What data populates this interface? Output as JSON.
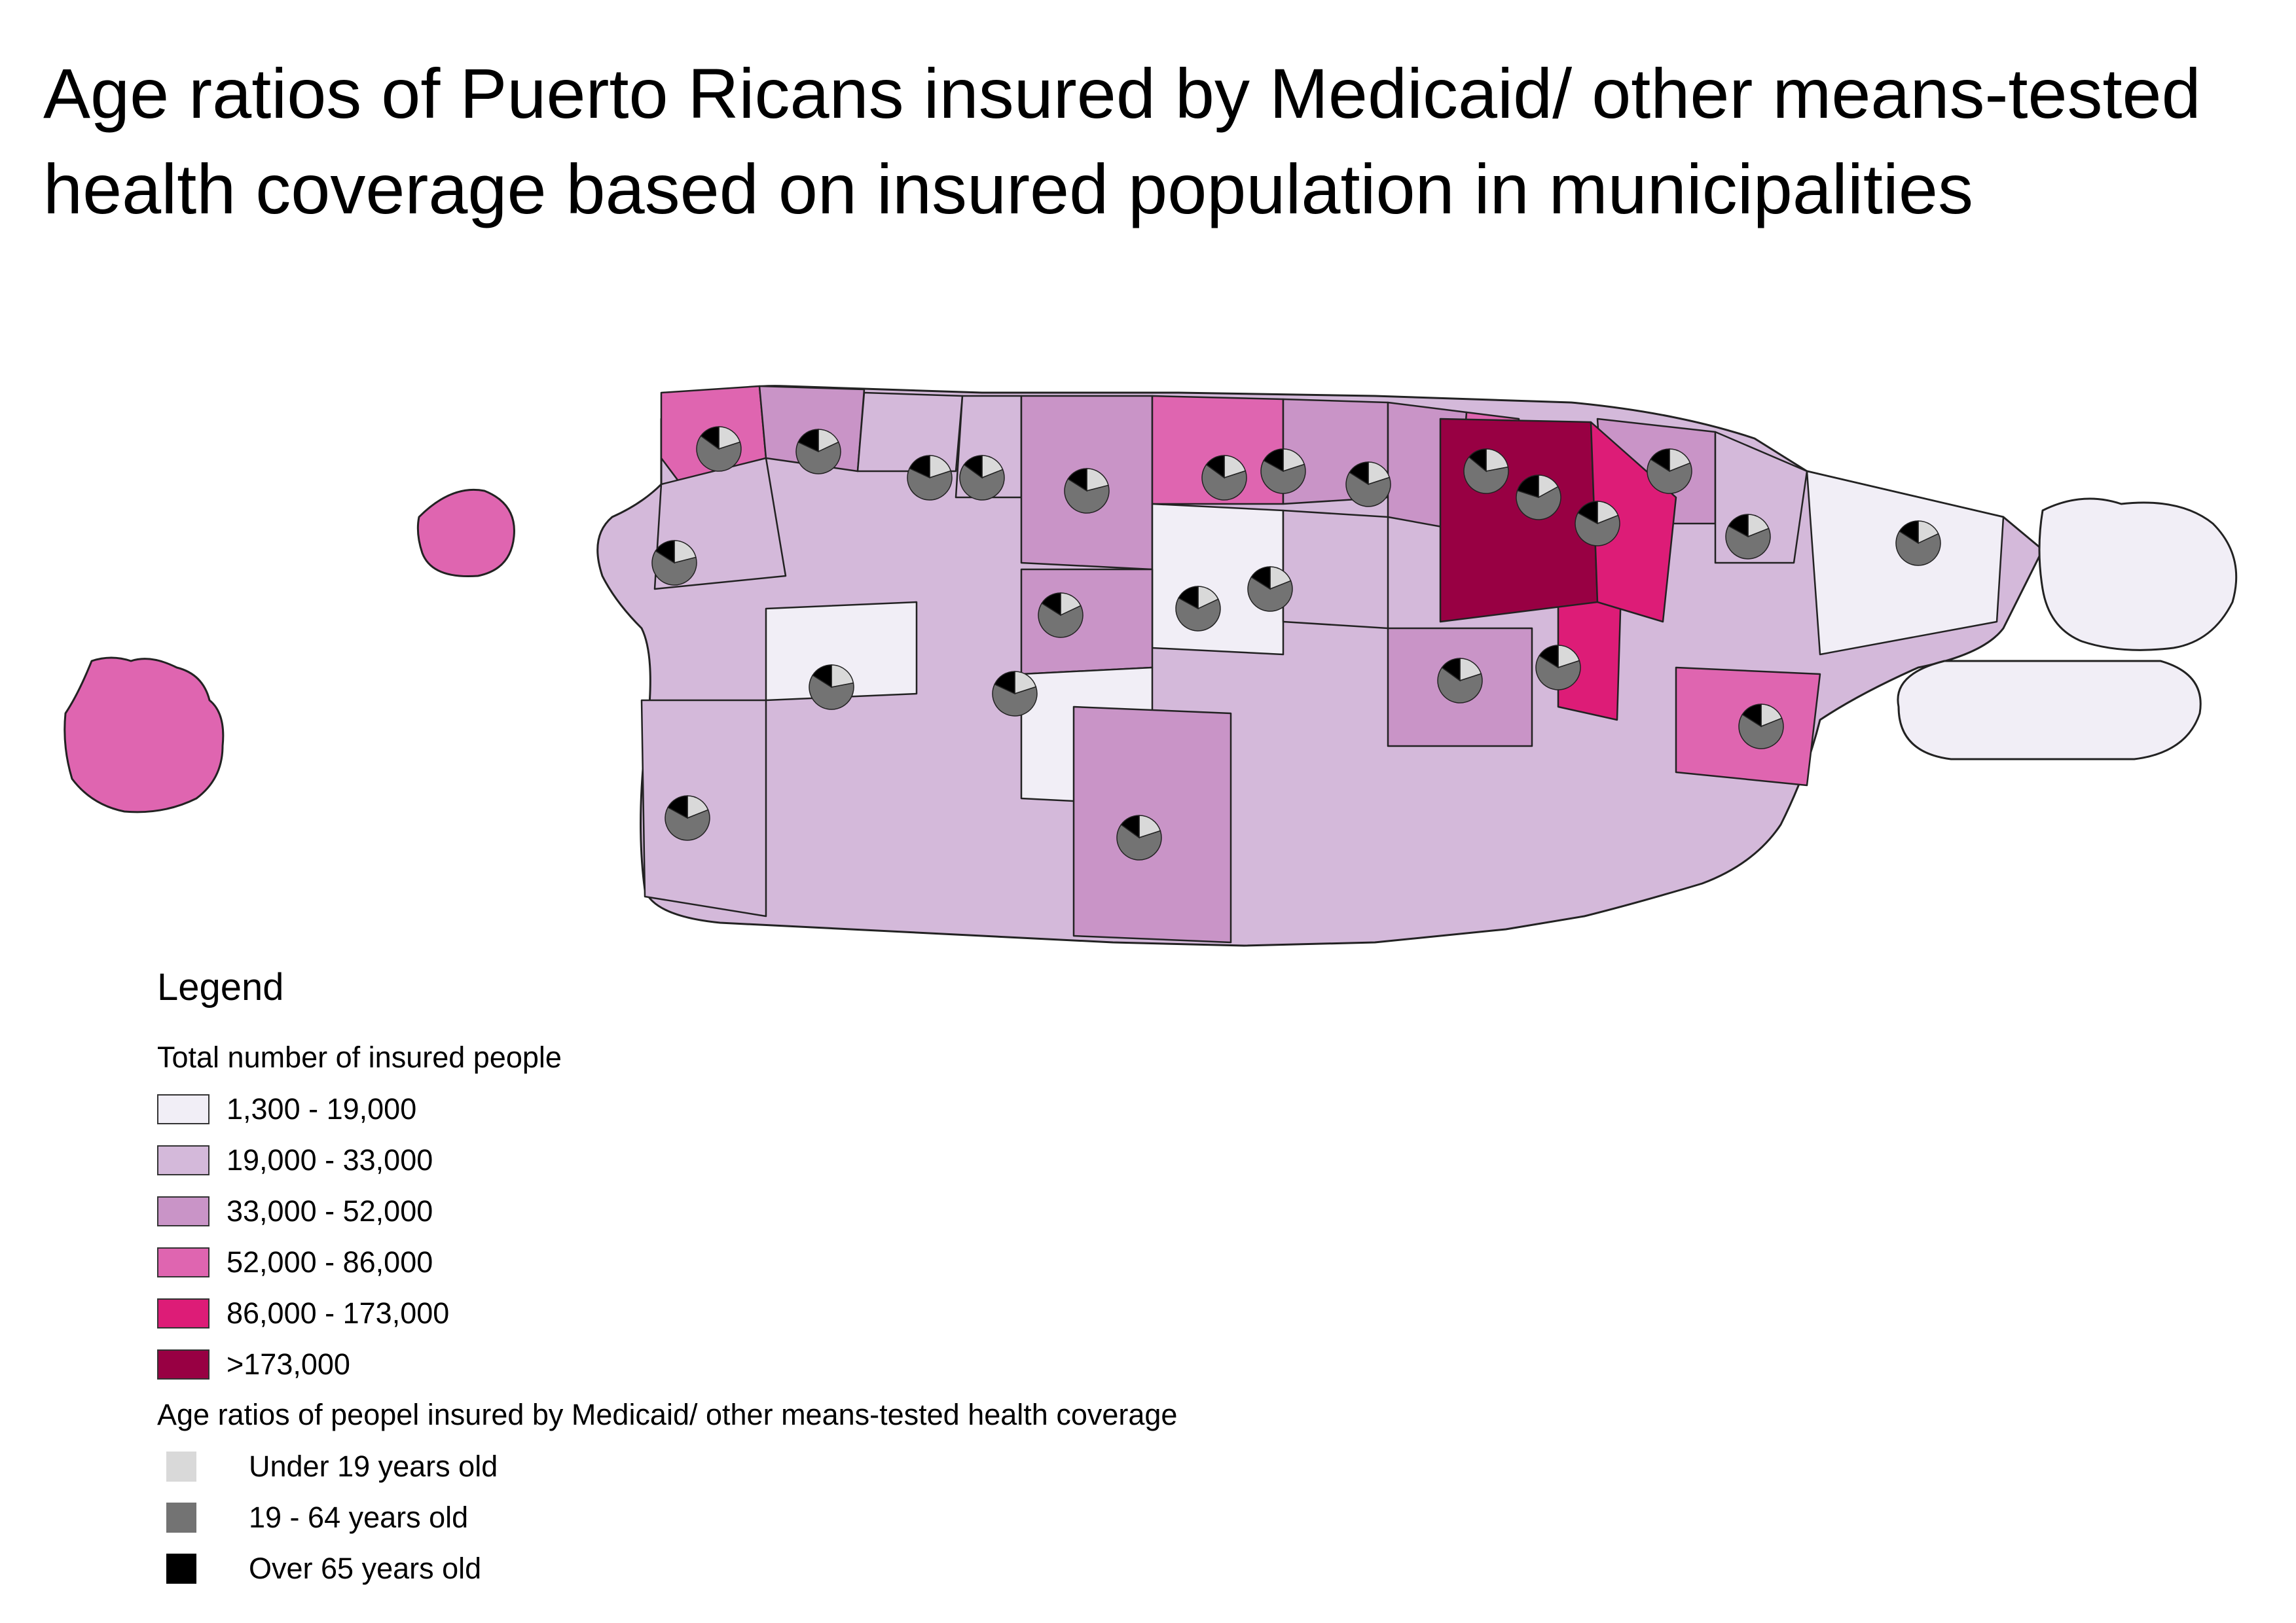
{
  "title": "Age ratios of Puerto Ricans insured by Medicaid/ other means-tested health coverage based on insured population in municipalities",
  "legend": {
    "heading": "Legend",
    "choropleth_title": "Total number of insured people",
    "classes": [
      {
        "label": "1,300 - 19,000",
        "color": "#f1eef6"
      },
      {
        "label": "19,000 - 33,000",
        "color": "#d4b9da"
      },
      {
        "label": "33,000 - 52,000",
        "color": "#c994c7"
      },
      {
        "label": "52,000 - 86,000",
        "color": "#df65b0"
      },
      {
        "label": "86,000 - 173,000",
        "color": "#dd1c77"
      },
      {
        "label": ">173,000",
        "color": "#980043"
      }
    ],
    "pie_title": "Age ratios of peopel insured by Medicaid/ other means-tested health coverage",
    "pie_classes": [
      {
        "label": "Under 19 years old",
        "color": "#d9d9d9"
      },
      {
        "label": "19 - 64 years old",
        "color": "#737373"
      },
      {
        "label": "Over 65 years old",
        "color": "#000000"
      }
    ]
  },
  "municipalities": [
    {
      "class": 3,
      "pie": [
        0.2,
        0.65,
        0.15
      ]
    },
    {
      "class": 2,
      "pie": [
        0.18,
        0.64,
        0.18
      ]
    },
    {
      "class": 1,
      "pie": [
        0.2,
        0.62,
        0.18
      ]
    },
    {
      "class": 1,
      "pie": [
        0.19,
        0.66,
        0.15
      ]
    },
    {
      "class": 2,
      "pie": [
        0.21,
        0.63,
        0.16
      ]
    },
    {
      "class": 3,
      "pie": [
        0.2,
        0.65,
        0.15
      ]
    },
    {
      "class": 0,
      "pie": [
        0.18,
        0.65,
        0.17
      ]
    },
    {
      "class": 2,
      "pie": [
        0.2,
        0.63,
        0.17
      ]
    },
    {
      "class": 2,
      "pie": [
        0.2,
        0.64,
        0.16
      ]
    },
    {
      "class": 3,
      "pie": [
        0.22,
        0.64,
        0.14
      ]
    },
    {
      "class": 2,
      "pie": [
        0.19,
        0.65,
        0.16
      ]
    },
    {
      "class": 1,
      "pie": [
        0.19,
        0.64,
        0.17
      ]
    },
    {
      "class": 0,
      "pie": [
        0.18,
        0.66,
        0.16
      ]
    },
    {
      "class": 1,
      "pie": [
        0.21,
        0.63,
        0.16
      ]
    },
    {
      "class": 4,
      "pie": [
        0.2,
        0.64,
        0.16
      ]
    },
    {
      "class": 2,
      "pie": [
        0.18,
        0.66,
        0.16
      ]
    },
    {
      "class": 1,
      "pie": [
        0.19,
        0.65,
        0.16
      ]
    },
    {
      "class": 5,
      "pie": [
        0.17,
        0.63,
        0.2
      ]
    },
    {
      "class": 4,
      "pie": [
        0.19,
        0.64,
        0.17
      ]
    },
    {
      "class": 2,
      "pie": [
        0.2,
        0.65,
        0.15
      ]
    },
    {
      "class": 0,
      "pie": [
        0.2,
        0.62,
        0.18
      ]
    },
    {
      "class": 0,
      "pie": [
        0.22,
        0.62,
        0.16
      ]
    },
    {
      "class": 3,
      "pie": [
        0.19,
        0.65,
        0.16
      ]
    },
    {
      "class": 2,
      "pie": [
        0.2,
        0.65,
        0.15
      ]
    },
    {
      "class": 1,
      "pie": [
        0.19,
        0.64,
        0.17
      ]
    }
  ]
}
